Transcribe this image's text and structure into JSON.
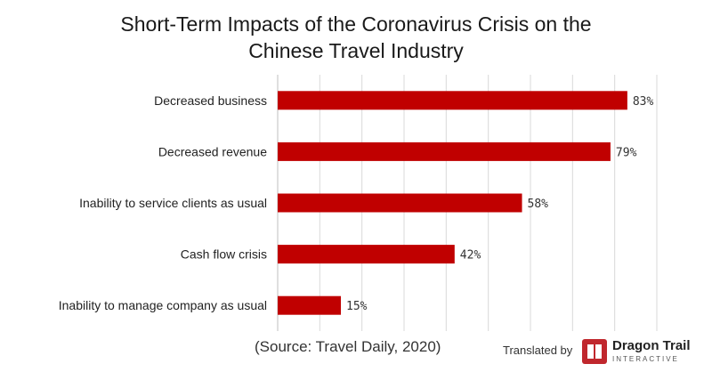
{
  "header": {
    "title_line1": "Short-Term Impacts of the Coronavirus Crisis on the",
    "title_line2": "Chinese Travel Industry"
  },
  "footer": {
    "source": "(Source: Travel Daily, 2020)",
    "credit_label": "Translated by",
    "logo_name": "Dragon Trail",
    "logo_sub": "INTERACTIVE"
  },
  "chart_data": {
    "type": "bar",
    "orientation": "horizontal",
    "title": "Short-Term Impacts of the Coronavirus Crisis on the Chinese Travel Industry",
    "categories": [
      "Decreased business",
      "Decreased revenue",
      "Inability to service clients as usual",
      "Cash flow crisis",
      "Inability to manage company as usual"
    ],
    "values": [
      83,
      79,
      58,
      42,
      15
    ],
    "value_labels": [
      "83%",
      "79%",
      "58%",
      "42%",
      "15%"
    ],
    "unit": "%",
    "xlim": [
      0,
      90
    ],
    "bar_color": "#c00000",
    "grid": true,
    "grid_color": "#d9d9d9"
  }
}
